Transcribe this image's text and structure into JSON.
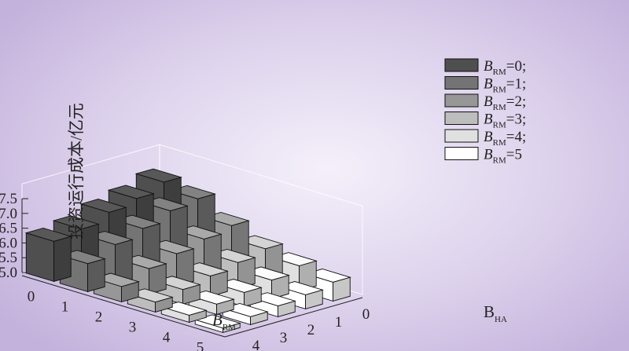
{
  "chart_data": {
    "type": "bar3d",
    "title": "",
    "ylabel": "投资运行成本/亿元",
    "xlabel_main": "B",
    "xlabel_sub": "RM",
    "zlabel_main": "B",
    "zlabel_sub": "HA",
    "ylim": [
      5.0,
      7.5
    ],
    "yticks": [
      "5.0",
      "5.5",
      "6.0",
      "6.5",
      "7.0",
      "7.5"
    ],
    "brm_ticks": [
      "0",
      "1",
      "2",
      "3",
      "4",
      "5"
    ],
    "bha_ticks": [
      "4",
      "3",
      "2",
      "1",
      "0"
    ],
    "legend": [
      {
        "main": "B",
        "sub": "RM",
        "suffix": "=0;",
        "color": "#4f4f4f"
      },
      {
        "main": "B",
        "sub": "RM",
        "suffix": "=1;",
        "color": "#747474"
      },
      {
        "main": "B",
        "sub": "RM",
        "suffix": "=2;",
        "color": "#979797"
      },
      {
        "main": "B",
        "sub": "RM",
        "suffix": "=3;",
        "color": "#bdbdbd"
      },
      {
        "main": "B",
        "sub": "RM",
        "suffix": "=4;",
        "color": "#e0e0e0"
      },
      {
        "main": "B",
        "sub": "RM",
        "suffix": "=5",
        "color": "#ffffff"
      }
    ],
    "series": [
      {
        "brm": 0,
        "values": [
          6.36,
          6.51,
          6.81,
          7.01,
          7.3
        ]
      },
      {
        "brm": 1,
        "values": [
          5.95,
          6.33,
          6.61,
          6.94,
          7.08
        ]
      },
      {
        "brm": 2,
        "values": [
          5.52,
          5.86,
          6.1,
          6.33,
          6.52
        ]
      },
      {
        "brm": 3,
        "values": [
          5.34,
          5.5,
          5.69,
          5.88,
          6.08
        ]
      },
      {
        "brm": 4,
        "values": [
          5.24,
          5.35,
          5.48,
          5.63,
          5.85
        ]
      },
      {
        "brm": 5,
        "values": [
          5.15,
          5.27,
          5.37,
          5.48,
          5.64
        ]
      }
    ]
  }
}
